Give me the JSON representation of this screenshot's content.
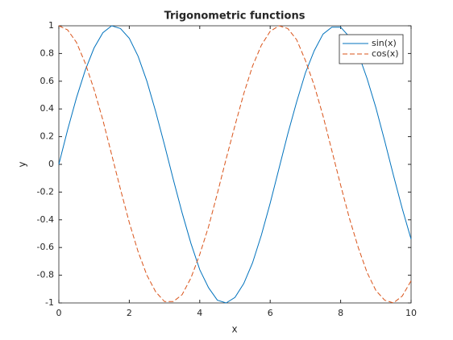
{
  "chart_data": {
    "type": "line",
    "title": "Trigonometric functions",
    "xlabel": "x",
    "ylabel": "y",
    "x": [
      0,
      0.25,
      0.5,
      0.75,
      1,
      1.25,
      1.5,
      1.75,
      2,
      2.25,
      2.5,
      2.75,
      3,
      3.25,
      3.5,
      3.75,
      4,
      4.25,
      4.5,
      4.75,
      5,
      5.25,
      5.5,
      5.75,
      6,
      6.25,
      6.5,
      6.75,
      7,
      7.25,
      7.5,
      7.75,
      8,
      8.25,
      8.5,
      8.75,
      9,
      9.25,
      9.5,
      9.75,
      10
    ],
    "series": [
      {
        "name": "sin(x)",
        "color": "#0072bd",
        "linestyle": "solid",
        "values": [
          0,
          0.25,
          0.48,
          0.68,
          0.84,
          0.95,
          1.0,
          0.98,
          0.91,
          0.78,
          0.6,
          0.38,
          0.14,
          -0.11,
          -0.35,
          -0.57,
          -0.76,
          -0.89,
          -0.98,
          -1.0,
          -0.96,
          -0.86,
          -0.71,
          -0.51,
          -0.28,
          -0.03,
          0.22,
          0.45,
          0.66,
          0.82,
          0.94,
          0.99,
          0.99,
          0.92,
          0.8,
          0.62,
          0.41,
          0.17,
          -0.08,
          -0.32,
          -0.54
        ]
      },
      {
        "name": "cos(x)",
        "color": "#d95319",
        "linestyle": "dashed",
        "values": [
          1,
          0.97,
          0.88,
          0.73,
          0.54,
          0.32,
          0.07,
          -0.18,
          -0.42,
          -0.63,
          -0.8,
          -0.92,
          -0.99,
          -0.99,
          -0.94,
          -0.82,
          -0.65,
          -0.45,
          -0.21,
          0.04,
          0.28,
          0.51,
          0.71,
          0.86,
          0.96,
          1.0,
          0.98,
          0.9,
          0.75,
          0.57,
          0.35,
          0.1,
          -0.15,
          -0.39,
          -0.6,
          -0.78,
          -0.91,
          -0.98,
          -1.0,
          -0.95,
          -0.84
        ]
      }
    ],
    "xlim": [
      0,
      10
    ],
    "xticks": [
      0,
      2,
      4,
      6,
      8,
      10
    ],
    "ylim": [
      -1,
      1
    ],
    "yticks": [
      -1,
      -0.8,
      -0.6,
      -0.4,
      -0.2,
      0,
      0.2,
      0.4,
      0.6,
      0.8,
      1
    ],
    "grid": false,
    "legend": "northeast"
  }
}
